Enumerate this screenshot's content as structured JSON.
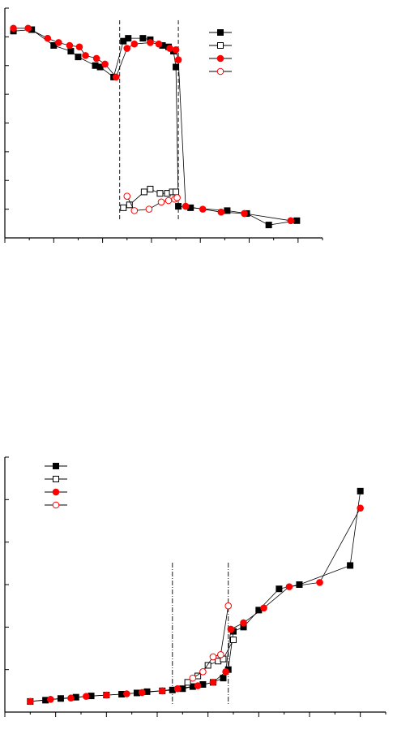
{
  "chart_data": [
    {
      "type": "scatter",
      "title": "",
      "xlabel": "",
      "ylabel": "",
      "xlim": [
        0,
        13
      ],
      "ylim": [
        0,
        8
      ],
      "grid": false,
      "legend": "top-right",
      "vlines": [
        4.7,
        7.1
      ],
      "series": [
        {
          "marker": "square-filled",
          "color": "#000000",
          "x": [
            0.35,
            1.1,
            2.0,
            2.7,
            3.0,
            3.7,
            3.9,
            4.45,
            4.85,
            5.05,
            5.65,
            5.95,
            6.45,
            6.7,
            6.9,
            7.0,
            7.1,
            7.6,
            9.1,
            9.9,
            10.8,
            11.95
          ],
          "y": [
            7.2,
            7.25,
            6.7,
            6.5,
            6.3,
            6.0,
            5.95,
            5.6,
            6.85,
            6.95,
            6.95,
            6.9,
            6.7,
            6.65,
            6.5,
            5.95,
            1.1,
            1.05,
            0.95,
            0.85,
            0.45,
            0.6
          ]
        },
        {
          "marker": "square-open",
          "color": "#000000",
          "x": [
            4.85,
            5.1,
            5.7,
            5.95,
            6.35,
            6.65,
            6.85,
            7.0
          ],
          "y": [
            1.05,
            1.15,
            1.6,
            1.7,
            1.55,
            1.55,
            1.6,
            1.6
          ]
        },
        {
          "marker": "circle-filled",
          "color": "#ff0000",
          "x": [
            0.35,
            0.95,
            1.75,
            2.2,
            2.65,
            3.05,
            3.3,
            3.75,
            4.1,
            4.55,
            5.0,
            5.3,
            5.95,
            6.3,
            6.75,
            7.0,
            7.1,
            7.4,
            8.1,
            8.85,
            9.8,
            11.7
          ],
          "y": [
            7.3,
            7.3,
            6.95,
            6.8,
            6.7,
            6.65,
            6.35,
            6.25,
            6.05,
            5.6,
            6.6,
            6.75,
            6.8,
            6.75,
            6.6,
            6.55,
            6.2,
            1.1,
            1.0,
            0.9,
            0.85,
            0.6
          ]
        },
        {
          "marker": "circle-open",
          "color": "#ff0000",
          "x": [
            5.0,
            5.3,
            5.9,
            6.4,
            6.7,
            6.95,
            7.05
          ],
          "y": [
            1.45,
            0.95,
            1.0,
            1.25,
            1.3,
            1.35,
            1.4
          ]
        }
      ]
    },
    {
      "type": "scatter",
      "title": "",
      "xlabel": "",
      "ylabel": "",
      "xlim": [
        0,
        7.5
      ],
      "ylim": [
        0,
        6
      ],
      "grid": false,
      "legend": "top-left",
      "vlines": [
        3.3,
        4.4
      ],
      "series": [
        {
          "marker": "square-filled",
          "color": "#000000",
          "x": [
            0.5,
            0.8,
            1.1,
            1.4,
            1.7,
            2.0,
            2.3,
            2.6,
            2.8,
            3.1,
            3.3,
            3.5,
            3.7,
            3.9,
            4.1,
            4.3,
            4.4,
            4.5,
            4.7,
            5.0,
            5.4,
            5.8,
            6.8,
            7.0
          ],
          "y": [
            0.25,
            0.28,
            0.32,
            0.35,
            0.38,
            0.4,
            0.42,
            0.45,
            0.48,
            0.5,
            0.52,
            0.55,
            0.6,
            0.65,
            0.7,
            0.8,
            1.0,
            1.9,
            2.0,
            2.4,
            2.9,
            3.0,
            3.45,
            5.2
          ]
        },
        {
          "marker": "square-open",
          "color": "#000000",
          "x": [
            3.6,
            3.8,
            4.0,
            4.2,
            4.3,
            4.5
          ],
          "y": [
            0.7,
            0.85,
            1.1,
            1.2,
            1.25,
            1.7
          ]
        },
        {
          "marker": "circle-filled",
          "color": "#ff0000",
          "x": [
            0.5,
            0.9,
            1.3,
            1.6,
            2.0,
            2.4,
            2.7,
            3.1,
            3.4,
            3.8,
            4.1,
            4.35,
            4.45,
            4.7,
            5.1,
            5.6,
            6.2,
            7.0
          ],
          "y": [
            0.25,
            0.3,
            0.33,
            0.37,
            0.4,
            0.43,
            0.46,
            0.5,
            0.55,
            0.62,
            0.7,
            0.95,
            1.95,
            2.1,
            2.45,
            2.95,
            3.05,
            4.8
          ]
        },
        {
          "marker": "circle-open",
          "color": "#ff0000",
          "x": [
            3.7,
            3.9,
            4.1,
            4.25,
            4.4
          ],
          "y": [
            0.8,
            0.95,
            1.3,
            1.35,
            2.5
          ]
        }
      ]
    }
  ]
}
